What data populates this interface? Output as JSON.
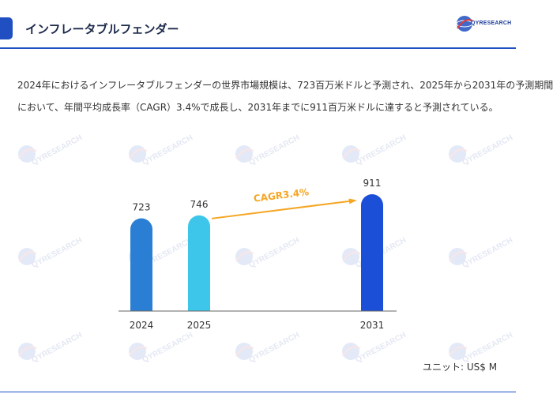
{
  "header": {
    "title": "インフレータブルフェンダー",
    "logo_text": "QYRESEARCH",
    "accent_color": "#1f4fc0"
  },
  "description": {
    "line1": "2024年におけるインフレータブルフェンダーの世界市場規模は、723百万米ドルと予測され、2025年から2031年の予測期間",
    "line2": "において、年間平均成長率（CAGR）3.4%で成長し、2031年までに911百万米ドルに達すると予測されている。"
  },
  "watermark": {
    "text": "QYRESEARCH"
  },
  "chart_data": {
    "type": "bar",
    "categories": [
      "2024",
      "2025",
      "2031"
    ],
    "values": [
      723,
      746,
      911
    ],
    "bar_colors": [
      "#2a7fd4",
      "#3ec6ea",
      "#1c4fd8"
    ],
    "annotation": {
      "text": "CAGR3.4%",
      "from": "2025",
      "to": "2031",
      "color": "#f5a623"
    },
    "title": "",
    "xlabel": "",
    "ylabel": "",
    "grid": false
  },
  "unit_label": "ユニット: US$ M"
}
